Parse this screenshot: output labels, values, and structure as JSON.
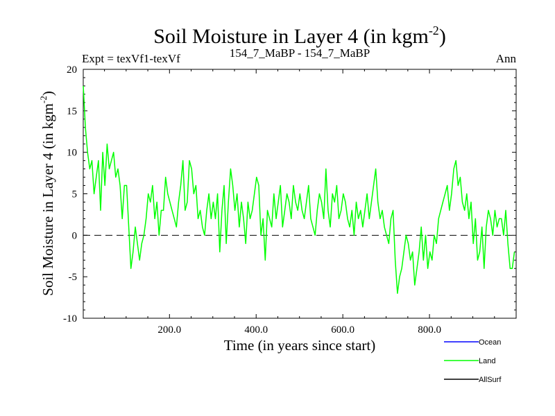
{
  "chart_data": {
    "type": "line",
    "title": "Soil Moisture in Layer 4 (in kgm",
    "title_sup": "-2",
    "title_close": ")",
    "subtitle_left": "Expt = texVf1-texVf",
    "subtitle_center": "154_7_MaBP - 154_7_MaBP",
    "subtitle_right": "Ann",
    "xlabel": "Time (in years since start)",
    "ylabel": "Soil Moisture in Layer 4 (in kgm",
    "ylabel_sup": "-2",
    "ylabel_close": ")",
    "xlim": [
      1,
      1000
    ],
    "ylim": [
      -10,
      20
    ],
    "x_ticks": [
      200,
      400,
      600,
      800
    ],
    "x_tick_labels": [
      "200.0",
      "400.0",
      "600.0",
      "800.0"
    ],
    "y_ticks": [
      -10,
      -5,
      0,
      5,
      10,
      15,
      20
    ],
    "y_tick_labels": [
      "-10",
      "-5",
      "0",
      "5",
      "10",
      "15",
      "20"
    ],
    "zero_line": true,
    "legend_position": "bottom-right",
    "series": [
      {
        "name": "Ocean",
        "color": "#0000ff",
        "values": []
      },
      {
        "name": "Land",
        "color": "#00ff00",
        "x_start": 1,
        "x_step": 5,
        "values": [
          18,
          13,
          10,
          8,
          9,
          5,
          7,
          9,
          3,
          10,
          6,
          11,
          8,
          9,
          10,
          7,
          8,
          6,
          2,
          6,
          6,
          1,
          -4,
          -2,
          1,
          -1,
          -3,
          -1,
          0,
          2,
          5,
          4,
          6,
          2,
          4,
          0,
          3,
          3,
          7,
          5,
          4,
          3,
          2,
          1,
          4,
          6,
          9,
          3,
          4,
          9,
          8,
          5,
          6,
          2,
          3,
          1,
          0,
          3,
          5,
          2,
          4,
          2,
          5,
          -2,
          3,
          6,
          -1,
          4,
          8,
          6,
          3,
          5,
          1,
          4,
          2,
          -1,
          4,
          2,
          3,
          5,
          7,
          6,
          0,
          2,
          -3,
          3,
          2,
          1,
          5,
          2,
          4,
          6,
          1,
          3,
          5,
          4,
          2,
          6,
          4,
          3,
          5,
          3,
          2,
          4,
          6,
          2,
          1,
          0,
          3,
          5,
          4,
          2,
          8,
          3,
          1,
          5,
          4,
          6,
          2,
          3,
          5,
          4,
          2,
          1,
          3,
          0,
          4,
          2,
          3,
          1,
          3,
          5,
          2,
          4,
          6,
          8,
          4,
          2,
          3,
          1,
          0,
          -1,
          2,
          3,
          -3,
          -7,
          -5,
          -4,
          -2,
          0,
          -1,
          -3,
          -2,
          -6,
          -4,
          -2,
          1,
          -3,
          0,
          -4,
          -2,
          -3,
          0,
          -1,
          2,
          3,
          4,
          5,
          6,
          3,
          5,
          8,
          9,
          6,
          7,
          4,
          3,
          5,
          2,
          4,
          -1,
          2,
          -3,
          -2,
          1,
          -4,
          1,
          3,
          2,
          0,
          3,
          1,
          2,
          2,
          0,
          3,
          -1,
          -4,
          -4,
          -2
        ]
      },
      {
        "name": "AllSurf",
        "color": "#000000",
        "values": []
      }
    ]
  }
}
